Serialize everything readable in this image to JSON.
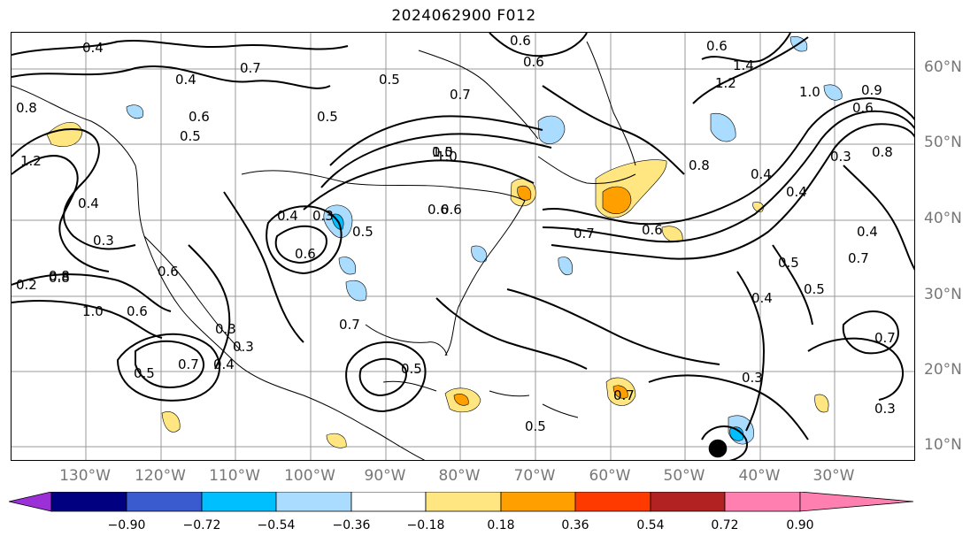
{
  "title": "2024062900 F012",
  "lat_labels": [
    "60°N",
    "50°N",
    "40°N",
    "30°N",
    "20°N",
    "10°N"
  ],
  "lon_labels": [
    "130°W",
    "120°W",
    "110°W",
    "100°W",
    "90°W",
    "80°W",
    "70°W",
    "60°W",
    "50°W",
    "40°W",
    "30°W"
  ],
  "colorbar": {
    "ticks": [
      "−0.90",
      "−0.72",
      "−0.54",
      "−0.36",
      "−0.18",
      "0.18",
      "0.36",
      "0.54",
      "0.72",
      "0.90"
    ],
    "colors": [
      "#9b30d9",
      "#000080",
      "#3a5bd0",
      "#00bfff",
      "#aadcff",
      "#ffffff",
      "#ffe680",
      "#ffa000",
      "#ff3a00",
      "#b22222",
      "#ff80b0"
    ]
  },
  "contour_labels": [
    "0.4",
    "0.7",
    "0.4",
    "0.6",
    "0.5",
    "0.8",
    "0.5",
    "0.7",
    "0.6",
    "0.6",
    "1.4",
    "1.2",
    "0.9",
    "1.0",
    "0.6",
    "0.6",
    "0.8",
    "0.4",
    "0.5",
    "0.5",
    "1.0",
    "1.2",
    "0.4",
    "0.3",
    "0.8",
    "0.2",
    "0.6",
    "0.5",
    "0.6",
    "0.7",
    "0.6",
    "0.8",
    "0.4",
    "0.3",
    "0.4",
    "0.5",
    "0.5",
    "0.7",
    "1.0",
    "0.8",
    "0.6",
    "1.0",
    "0.3",
    "0.5",
    "0.4",
    "0.3",
    "0.7",
    "0.7",
    "0.5",
    "0.6",
    "0.6",
    "0.7",
    "0.5",
    "0.3",
    "0.3",
    "0.7",
    "0.3",
    "0.4",
    "0.4"
  ]
}
